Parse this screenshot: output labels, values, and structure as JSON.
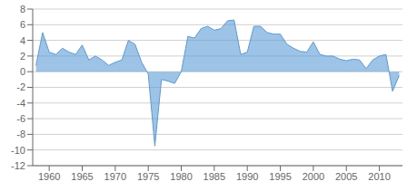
{
  "chart_data": {
    "type": "area",
    "x": [
      1958,
      1959,
      1960,
      1961,
      1962,
      1963,
      1964,
      1965,
      1966,
      1967,
      1968,
      1969,
      1970,
      1971,
      1972,
      1973,
      1974,
      1975,
      1976,
      1977,
      1978,
      1979,
      1980,
      1981,
      1982,
      1983,
      1984,
      1985,
      1986,
      1987,
      1988,
      1989,
      1990,
      1991,
      1992,
      1993,
      1994,
      1995,
      1996,
      1997,
      1998,
      1999,
      2000,
      2001,
      2002,
      2003,
      2004,
      2005,
      2006,
      2007,
      2008,
      2009,
      2010,
      2011,
      2012,
      2013
    ],
    "values": [
      0.8,
      5.0,
      2.5,
      2.2,
      3.0,
      2.5,
      2.2,
      3.4,
      1.5,
      2.0,
      1.5,
      0.8,
      1.2,
      1.5,
      4.0,
      3.5,
      1.2,
      -0.3,
      -9.5,
      -1.0,
      -1.2,
      -1.5,
      0.0,
      4.5,
      4.3,
      5.5,
      5.8,
      5.3,
      5.5,
      6.5,
      6.6,
      2.2,
      2.5,
      5.8,
      5.8,
      5.0,
      4.8,
      4.8,
      3.5,
      3.0,
      2.6,
      2.5,
      3.8,
      2.2,
      2.0,
      2.0,
      1.6,
      1.4,
      1.6,
      1.5,
      0.4,
      1.5,
      2.0,
      2.2,
      -2.5,
      -0.5
    ],
    "color": "#5b9bd5",
    "xlim": [
      1957.5,
      2013.5
    ],
    "ylim": [
      -12,
      8
    ],
    "xticks": [
      1960,
      1965,
      1970,
      1975,
      1980,
      1985,
      1990,
      1995,
      2000,
      2005,
      2010
    ],
    "yticks": [
      -12,
      -10,
      -8,
      -6,
      -4,
      -2,
      0,
      2,
      4,
      6,
      8
    ],
    "grid": true
  }
}
